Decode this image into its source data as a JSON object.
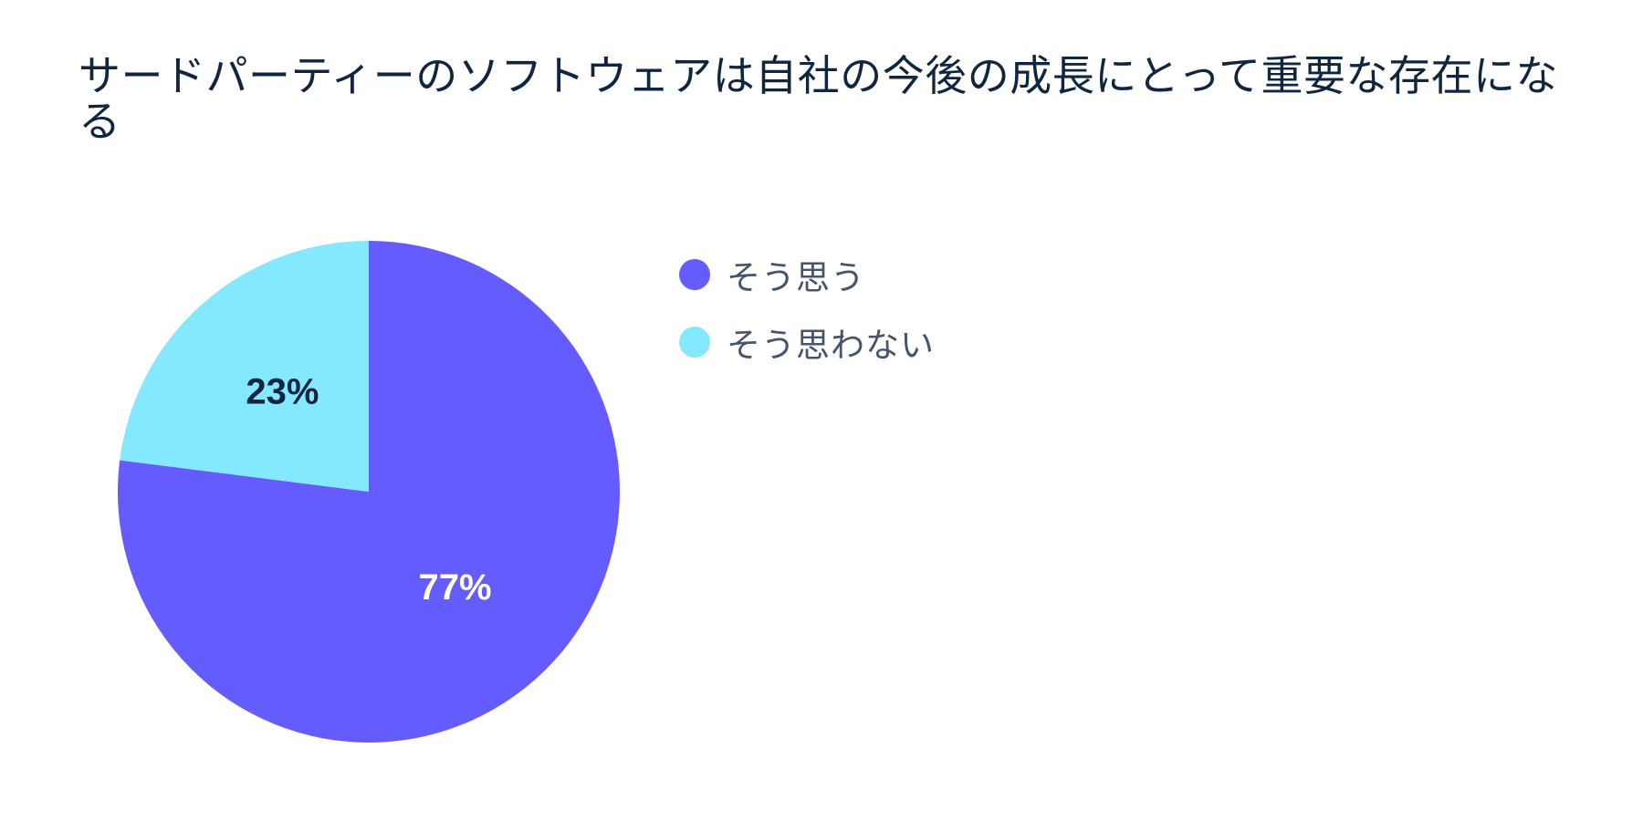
{
  "chart_data": {
    "type": "pie",
    "title": "サードパーティーのソフトウェアは自社の今後の成長にとって重要な存在になる",
    "slices": [
      {
        "label": "そう思う",
        "value": 77,
        "display": "77%",
        "color": "#645cff",
        "label_color": "#ffffff"
      },
      {
        "label": "そう思わない",
        "value": 23,
        "display": "23%",
        "color": "#84e9ff",
        "label_color": "#0f2540"
      }
    ],
    "legend": "right"
  }
}
